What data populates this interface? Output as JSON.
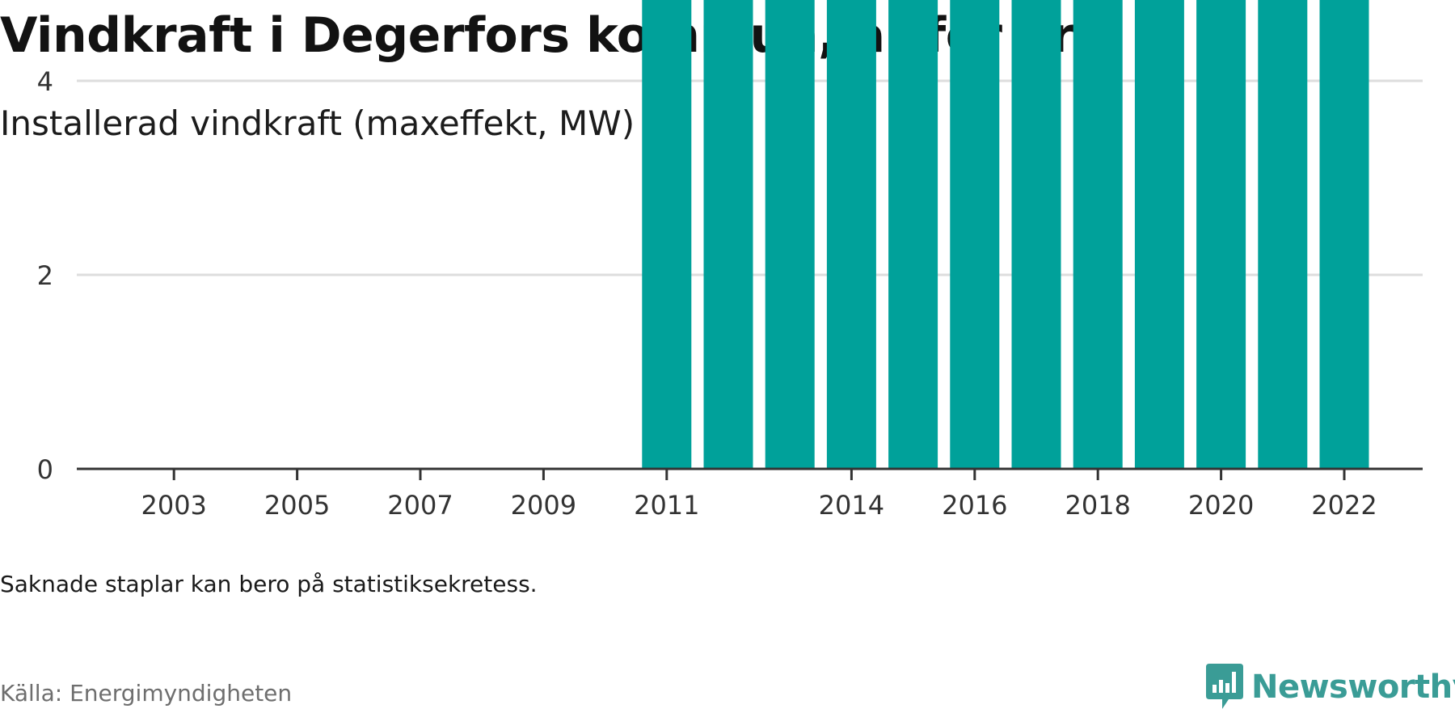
{
  "header": {
    "title": "Vindkraft i Degerfors kommun, år för år",
    "subtitle": "Installerad vindkraft (maxeffekt, MW)"
  },
  "footer": {
    "note": "Saknade staplar kan bero på statistiksekretess.",
    "source": "Källa: Energimyndigheten",
    "brand": "Newsworthy",
    "brand_icon": "newsworthy-logo-icon"
  },
  "colors": {
    "bar": "#00a19a",
    "brand": "#3a9c96",
    "grid": "#dddddd",
    "axis": "#333333",
    "tick_text": "#333333"
  },
  "chart_data": {
    "type": "bar",
    "title": "",
    "xlabel": "",
    "ylabel": "",
    "ylim": [
      0,
      5
    ],
    "yticks": [
      0,
      2,
      4
    ],
    "grid": true,
    "legend": "none",
    "categories": [
      "2002",
      "2003",
      "2004",
      "2005",
      "2006",
      "2007",
      "2008",
      "2009",
      "2010",
      "2011",
      "2012",
      "2013",
      "2014",
      "2015",
      "2016",
      "2017",
      "2018",
      "2019",
      "2020",
      "2021",
      "2022",
      "2023"
    ],
    "xtick_labels": [
      "2003",
      "2005",
      "2007",
      "2009",
      "2011",
      "2014",
      "2016",
      "2018",
      "2020",
      "2022"
    ],
    "values": [
      null,
      null,
      null,
      null,
      null,
      null,
      null,
      null,
      null,
      4.95,
      4.95,
      4.95,
      4.95,
      4.95,
      4.95,
      4.95,
      4.95,
      4.95,
      4.95,
      4.95,
      4.95,
      null
    ]
  }
}
